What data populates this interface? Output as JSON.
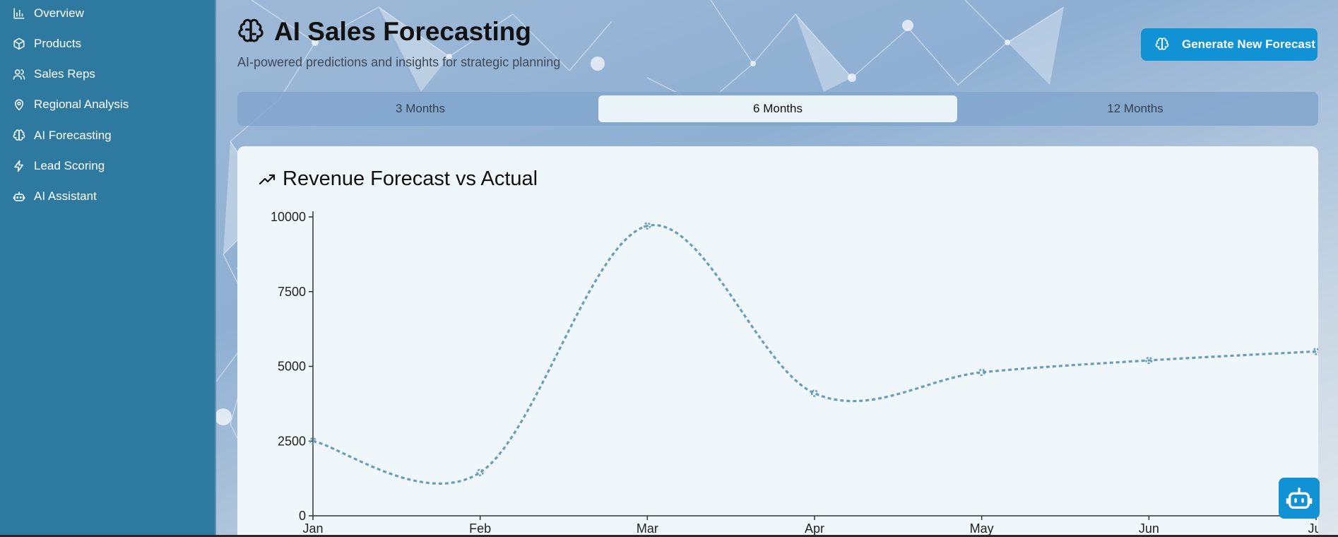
{
  "sidebar": {
    "items": [
      {
        "label": "Overview",
        "icon": "bar-chart-icon"
      },
      {
        "label": "Products",
        "icon": "box-icon"
      },
      {
        "label": "Sales Reps",
        "icon": "users-icon"
      },
      {
        "label": "Regional Analysis",
        "icon": "map-pin-icon"
      },
      {
        "label": "AI Forecasting",
        "icon": "brain-icon"
      },
      {
        "label": "Lead Scoring",
        "icon": "zap-icon"
      },
      {
        "label": "AI Assistant",
        "icon": "bot-icon"
      }
    ]
  },
  "header": {
    "title": "AI Sales Forecasting",
    "subtitle": "AI-powered predictions and insights for strategic planning",
    "icon": "brain-icon",
    "generate_button": "Generate New Forecast"
  },
  "tabs": [
    {
      "label": "3 Months",
      "active": false
    },
    {
      "label": "6 Months",
      "active": true
    },
    {
      "label": "12 Months",
      "active": false
    }
  ],
  "card": {
    "title": "Revenue Forecast vs Actual",
    "icon": "trending-up-icon"
  },
  "colors": {
    "sidebar": "#2e799f",
    "accent": "#1192d4",
    "line": "#6b9db8",
    "card": "#eff7fa"
  },
  "chart_data": {
    "type": "line",
    "categories": [
      "Jan",
      "Feb",
      "Mar",
      "Apr",
      "May",
      "Jun",
      "Jul"
    ],
    "series": [
      {
        "style": "dashed",
        "values": [
          2500,
          1450,
          9700,
          4100,
          4800,
          5200,
          5500
        ]
      }
    ],
    "y_ticks": [
      0,
      2500,
      5000,
      7500,
      10000
    ],
    "ylim": [
      0,
      10000
    ],
    "grid": false,
    "legend": "none"
  }
}
